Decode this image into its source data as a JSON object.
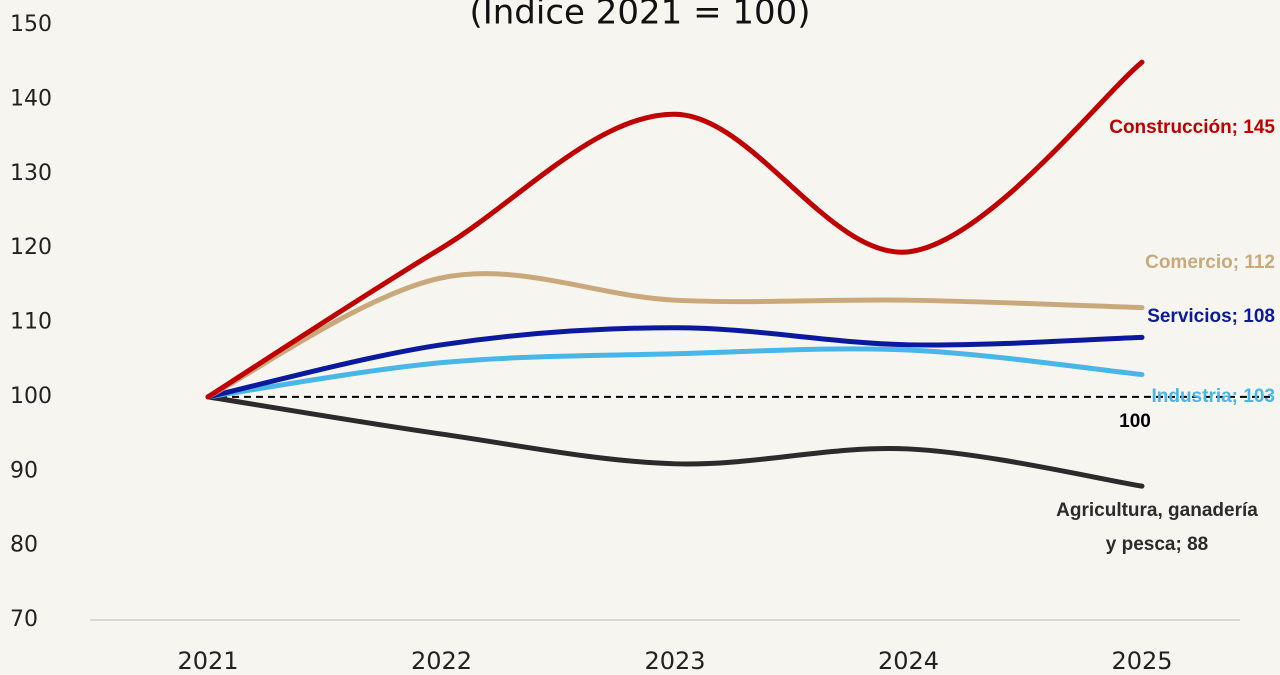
{
  "chart_data": {
    "type": "line",
    "title": "(Índice 2021 = 100)",
    "categories": [
      "2021",
      "2022",
      "2023",
      "2024",
      "2025"
    ],
    "ylim": [
      70,
      150
    ],
    "yticks": [
      70,
      80,
      90,
      100,
      110,
      120,
      130,
      140,
      150
    ],
    "reference_line": 100,
    "series": [
      {
        "label": [
          "Construcción; 145"
        ],
        "color": "#c00000",
        "values": [
          100,
          120,
          138,
          119.5,
          145
        ]
      },
      {
        "label": [
          "Comercio; 112"
        ],
        "color": "#c9a97c",
        "values": [
          100,
          116,
          113,
          113,
          112
        ]
      },
      {
        "label": [
          "Servicios; 108"
        ],
        "color": "#0b1a9c",
        "values": [
          100,
          107,
          109.3,
          107,
          108
        ]
      },
      {
        "label": [
          "Industria; 103"
        ],
        "color": "#48b6e6",
        "values": [
          100,
          104.6,
          105.8,
          106.3,
          103
        ]
      },
      {
        "label": [
          "Agricultura, ganadería",
          "y pesca; 88"
        ],
        "color": "#2b2b2b",
        "values": [
          100,
          95,
          91,
          93,
          88
        ]
      }
    ]
  }
}
